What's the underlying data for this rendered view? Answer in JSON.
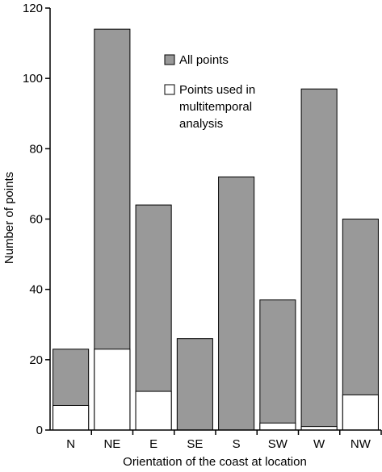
{
  "chart_data": {
    "type": "bar",
    "categories": [
      "N",
      "NE",
      "E",
      "SE",
      "S",
      "SW",
      "W",
      "NW"
    ],
    "series": [
      {
        "name": "All points",
        "values": [
          23,
          114,
          64,
          26,
          72,
          37,
          97,
          60
        ],
        "color": "#999999"
      },
      {
        "name": "Points used in multitemporal analysis",
        "values": [
          7,
          23,
          11,
          0,
          0,
          2,
          1,
          10
        ],
        "color": "#ffffff"
      }
    ],
    "xlabel": "Orientation of the coast at location",
    "ylabel": "Number of points",
    "ylim": [
      0,
      120
    ],
    "yticks": [
      "0",
      "20",
      "40",
      "60",
      "80",
      "100",
      "120"
    ],
    "grid": false,
    "legend_position": "top-right",
    "legend_lines": [
      [
        "All points"
      ],
      [
        "Points used in",
        "multitemporal",
        "analysis"
      ]
    ]
  }
}
